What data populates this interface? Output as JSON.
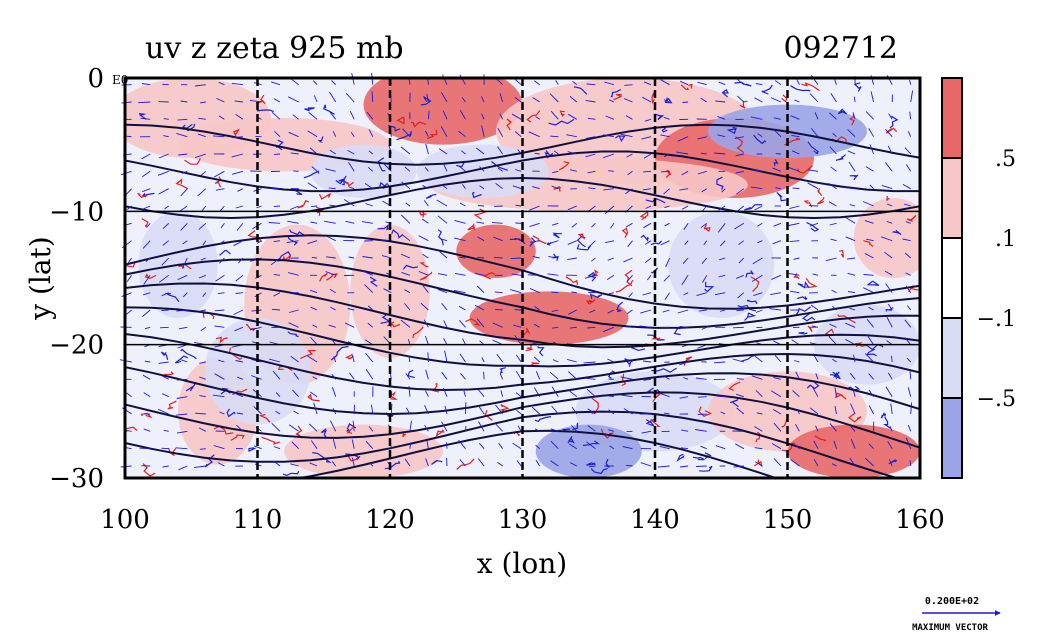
{
  "chart_data": {
    "type": "heatmap",
    "title": "uv z zeta 925 mb",
    "subtitle": "092712",
    "xlabel": "x (lon)",
    "ylabel": "y (lat)",
    "xlim": [
      100,
      160
    ],
    "ylim": [
      -30,
      0
    ],
    "x_ticks": [
      100,
      110,
      120,
      130,
      140,
      150,
      160
    ],
    "x_tick_labels": [
      "100",
      "110",
      "120",
      "130",
      "140",
      "150",
      "160"
    ],
    "y_ticks": [
      0,
      -10,
      -20,
      -30
    ],
    "y_tick_labels": [
      "0",
      "−10",
      "−20",
      "−30"
    ],
    "y_corner_label": "E0",
    "grid": true,
    "colorbar": {
      "colors": [
        "#e86868",
        "#f7c6c6",
        "#ffffff",
        "#d8dcf5",
        "#9aa4e6"
      ],
      "levels": [
        ".5",
        ".1",
        "−.1",
        "−.5"
      ]
    },
    "series": [
      {
        "name": "zeta",
        "description": "shaded relative vorticity; red contours positive, blue negative"
      },
      {
        "name": "z",
        "description": "black geopotential height contours"
      },
      {
        "name": "uv",
        "description": "blue wind vectors"
      }
    ],
    "vector_key": {
      "value": "0.200E+02",
      "label": "MAXIMUM VECTOR"
    },
    "colors": {
      "positive": "#e02020",
      "negative": "#1a22d6",
      "height_contour": "#101040",
      "vector": "#1a1ae0"
    }
  }
}
